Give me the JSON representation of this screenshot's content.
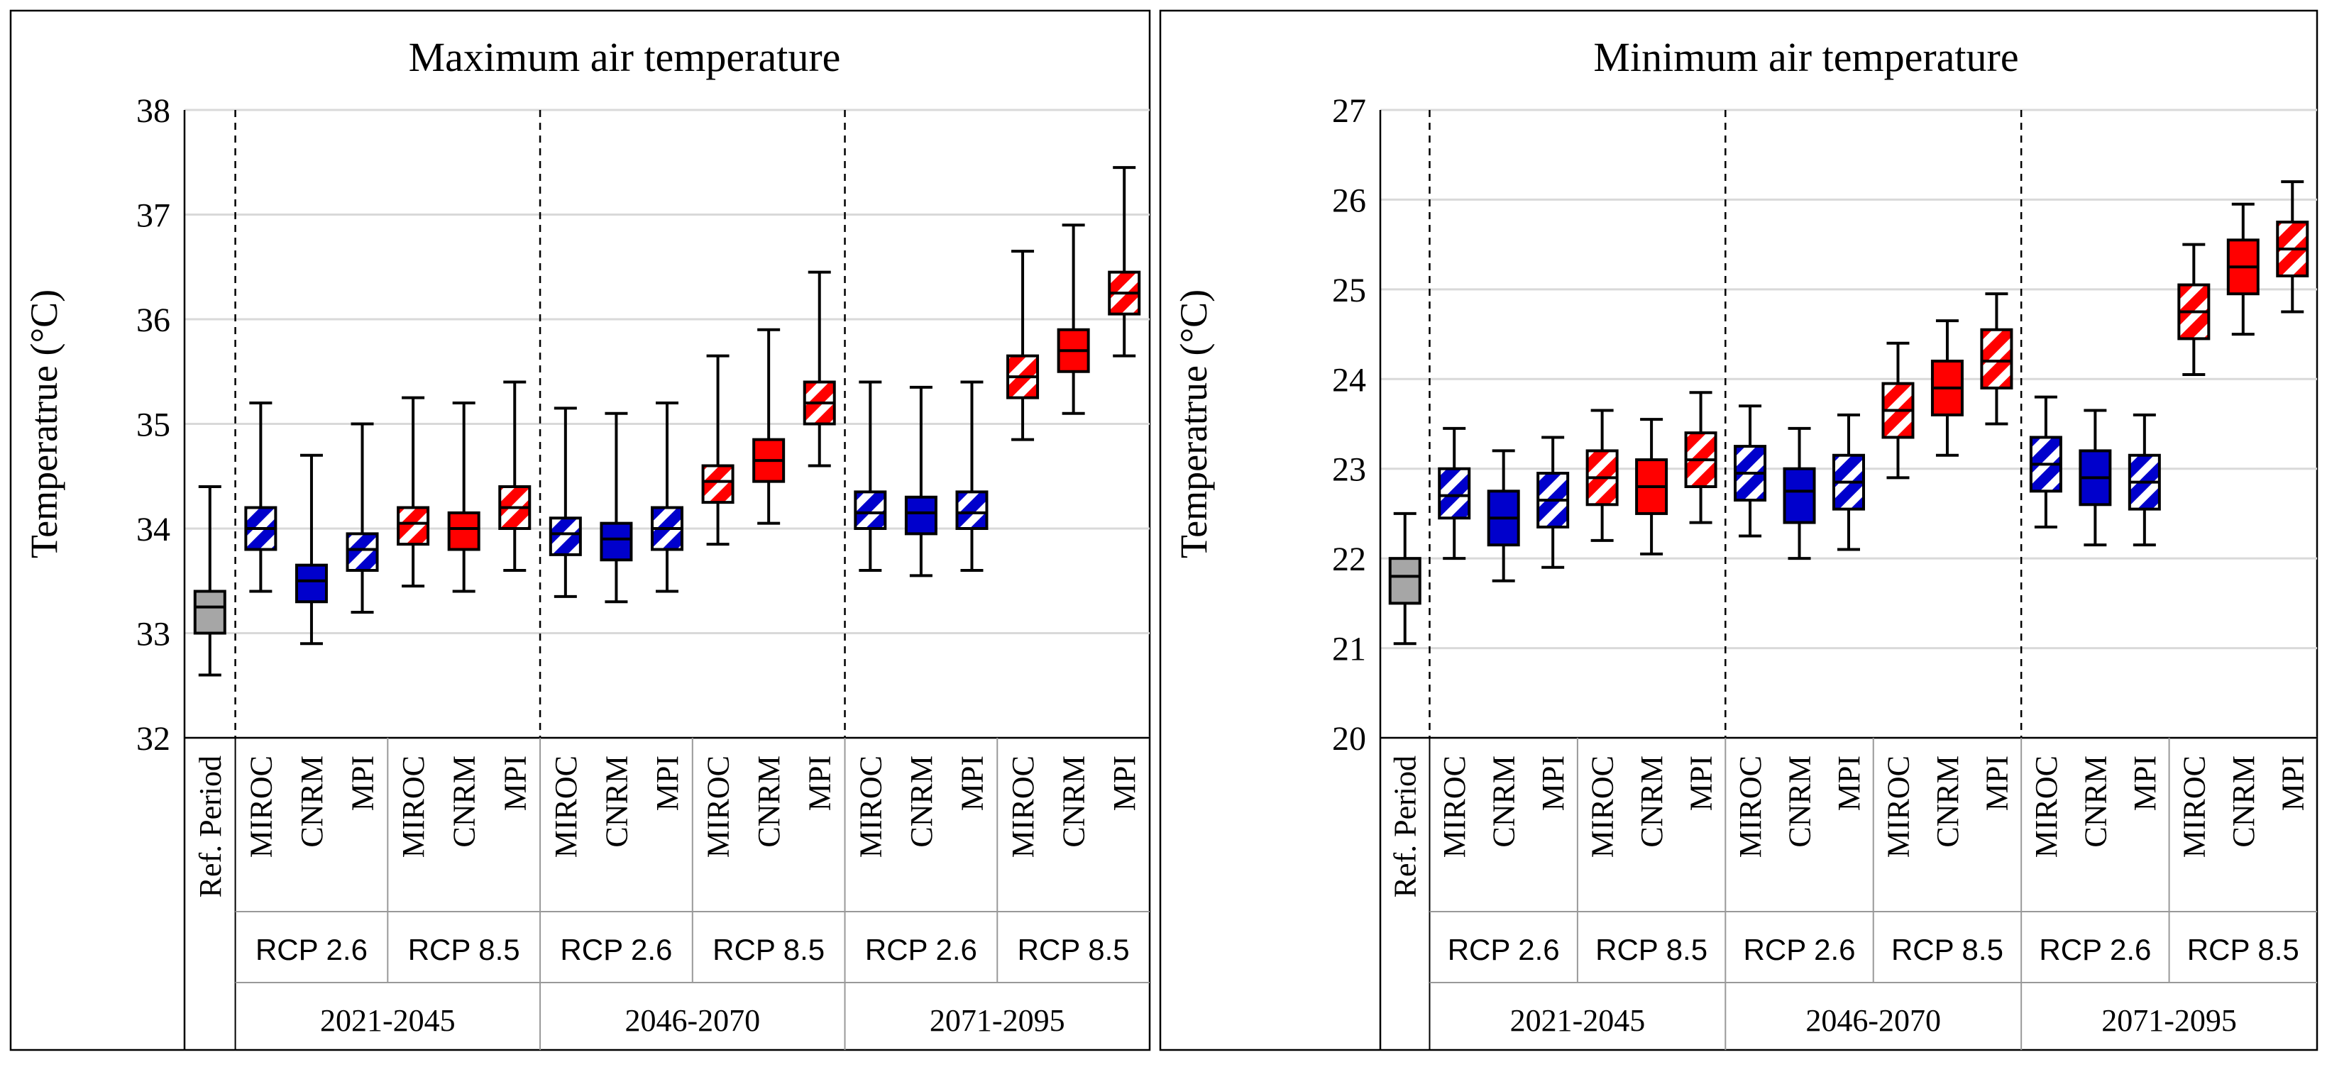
{
  "colors": {
    "ref": "#a6a6a6",
    "rcp26": "#0000cc",
    "rcp85": "#ff0000",
    "grid": "#d9d9d9",
    "frame": "#000000"
  },
  "x_axis": {
    "ref_label": "Ref. Period",
    "models": [
      "MIROC",
      "CNRM",
      "MPI"
    ],
    "scenarios": [
      "RCP 2.6",
      "RCP 8.5"
    ],
    "periods": [
      "2021-2045",
      "2046-2070",
      "2071-2095"
    ]
  },
  "chart_data": [
    {
      "type": "boxplot",
      "title": "Maximum air temperature",
      "ylabel": "Temperatrue (°C)",
      "ylim": [
        32,
        38
      ],
      "yticks": [
        "32",
        "33",
        "34",
        "35",
        "36",
        "37",
        "38"
      ],
      "grid": true,
      "boxes": [
        {
          "group": "Ref. Period",
          "scenario": "",
          "model": "",
          "color": "ref",
          "pattern": "solid",
          "min": 32.6,
          "q1": 33.0,
          "median": 33.25,
          "q3": 33.4,
          "max": 34.4
        },
        {
          "group": "2021-2045",
          "scenario": "RCP 2.6",
          "model": "MIROC",
          "color": "rcp26",
          "pattern": "hatched",
          "min": 33.4,
          "q1": 33.8,
          "median": 34.0,
          "q3": 34.2,
          "max": 35.2
        },
        {
          "group": "2021-2045",
          "scenario": "RCP 2.6",
          "model": "CNRM",
          "color": "rcp26",
          "pattern": "solid",
          "min": 32.9,
          "q1": 33.3,
          "median": 33.5,
          "q3": 33.65,
          "max": 34.7
        },
        {
          "group": "2021-2045",
          "scenario": "RCP 2.6",
          "model": "MPI",
          "color": "rcp26",
          "pattern": "hatched",
          "min": 33.2,
          "q1": 33.6,
          "median": 33.8,
          "q3": 33.95,
          "max": 35.0
        },
        {
          "group": "2021-2045",
          "scenario": "RCP 8.5",
          "model": "MIROC",
          "color": "rcp85",
          "pattern": "hatched",
          "min": 33.45,
          "q1": 33.85,
          "median": 34.05,
          "q3": 34.2,
          "max": 35.25
        },
        {
          "group": "2021-2045",
          "scenario": "RCP 8.5",
          "model": "CNRM",
          "color": "rcp85",
          "pattern": "solid",
          "min": 33.4,
          "q1": 33.8,
          "median": 34.0,
          "q3": 34.15,
          "max": 35.2
        },
        {
          "group": "2021-2045",
          "scenario": "RCP 8.5",
          "model": "MPI",
          "color": "rcp85",
          "pattern": "hatched",
          "min": 33.6,
          "q1": 34.0,
          "median": 34.2,
          "q3": 34.4,
          "max": 35.4
        },
        {
          "group": "2046-2070",
          "scenario": "RCP 2.6",
          "model": "MIROC",
          "color": "rcp26",
          "pattern": "hatched",
          "min": 33.35,
          "q1": 33.75,
          "median": 33.95,
          "q3": 34.1,
          "max": 35.15
        },
        {
          "group": "2046-2070",
          "scenario": "RCP 2.6",
          "model": "CNRM",
          "color": "rcp26",
          "pattern": "solid",
          "min": 33.3,
          "q1": 33.7,
          "median": 33.9,
          "q3": 34.05,
          "max": 35.1
        },
        {
          "group": "2046-2070",
          "scenario": "RCP 2.6",
          "model": "MPI",
          "color": "rcp26",
          "pattern": "hatched",
          "min": 33.4,
          "q1": 33.8,
          "median": 34.0,
          "q3": 34.2,
          "max": 35.2
        },
        {
          "group": "2046-2070",
          "scenario": "RCP 8.5",
          "model": "MIROC",
          "color": "rcp85",
          "pattern": "hatched",
          "min": 33.85,
          "q1": 34.25,
          "median": 34.45,
          "q3": 34.6,
          "max": 35.65
        },
        {
          "group": "2046-2070",
          "scenario": "RCP 8.5",
          "model": "CNRM",
          "color": "rcp85",
          "pattern": "solid",
          "min": 34.05,
          "q1": 34.45,
          "median": 34.65,
          "q3": 34.85,
          "max": 35.9
        },
        {
          "group": "2046-2070",
          "scenario": "RCP 8.5",
          "model": "MPI",
          "color": "rcp85",
          "pattern": "hatched",
          "min": 34.6,
          "q1": 35.0,
          "median": 35.2,
          "q3": 35.4,
          "max": 36.45
        },
        {
          "group": "2071-2095",
          "scenario": "RCP 2.6",
          "model": "MIROC",
          "color": "rcp26",
          "pattern": "hatched",
          "min": 33.6,
          "q1": 34.0,
          "median": 34.15,
          "q3": 34.35,
          "max": 35.4
        },
        {
          "group": "2071-2095",
          "scenario": "RCP 2.6",
          "model": "CNRM",
          "color": "rcp26",
          "pattern": "solid",
          "min": 33.55,
          "q1": 33.95,
          "median": 34.15,
          "q3": 34.3,
          "max": 35.35
        },
        {
          "group": "2071-2095",
          "scenario": "RCP 2.6",
          "model": "MPI",
          "color": "rcp26",
          "pattern": "hatched",
          "min": 33.6,
          "q1": 34.0,
          "median": 34.15,
          "q3": 34.35,
          "max": 35.4
        },
        {
          "group": "2071-2095",
          "scenario": "RCP 8.5",
          "model": "MIROC",
          "color": "rcp85",
          "pattern": "hatched",
          "min": 34.85,
          "q1": 35.25,
          "median": 35.45,
          "q3": 35.65,
          "max": 36.65
        },
        {
          "group": "2071-2095",
          "scenario": "RCP 8.5",
          "model": "CNRM",
          "color": "rcp85",
          "pattern": "solid",
          "min": 35.1,
          "q1": 35.5,
          "median": 35.7,
          "q3": 35.9,
          "max": 36.9
        },
        {
          "group": "2071-2095",
          "scenario": "RCP 8.5",
          "model": "MPI",
          "color": "rcp85",
          "pattern": "hatched",
          "min": 35.65,
          "q1": 36.05,
          "median": 36.25,
          "q3": 36.45,
          "max": 37.45
        }
      ]
    },
    {
      "type": "boxplot",
      "title": "Minimum air temperature",
      "ylabel": "Temperatrue (°C)",
      "ylim": [
        20,
        27
      ],
      "yticks": [
        "20",
        "21",
        "22",
        "23",
        "24",
        "25",
        "26",
        "27"
      ],
      "grid": true,
      "boxes": [
        {
          "group": "Ref. Period",
          "scenario": "",
          "model": "",
          "color": "ref",
          "pattern": "solid",
          "min": 21.05,
          "q1": 21.5,
          "median": 21.8,
          "q3": 22.0,
          "max": 22.5
        },
        {
          "group": "2021-2045",
          "scenario": "RCP 2.6",
          "model": "MIROC",
          "color": "rcp26",
          "pattern": "hatched",
          "min": 22.0,
          "q1": 22.45,
          "median": 22.7,
          "q3": 23.0,
          "max": 23.45
        },
        {
          "group": "2021-2045",
          "scenario": "RCP 2.6",
          "model": "CNRM",
          "color": "rcp26",
          "pattern": "solid",
          "min": 21.75,
          "q1": 22.15,
          "median": 22.45,
          "q3": 22.75,
          "max": 23.2
        },
        {
          "group": "2021-2045",
          "scenario": "RCP 2.6",
          "model": "MPI",
          "color": "rcp26",
          "pattern": "hatched",
          "min": 21.9,
          "q1": 22.35,
          "median": 22.65,
          "q3": 22.95,
          "max": 23.35
        },
        {
          "group": "2021-2045",
          "scenario": "RCP 8.5",
          "model": "MIROC",
          "color": "rcp85",
          "pattern": "hatched",
          "min": 22.2,
          "q1": 22.6,
          "median": 22.9,
          "q3": 23.2,
          "max": 23.65
        },
        {
          "group": "2021-2045",
          "scenario": "RCP 8.5",
          "model": "CNRM",
          "color": "rcp85",
          "pattern": "solid",
          "min": 22.05,
          "q1": 22.5,
          "median": 22.8,
          "q3": 23.1,
          "max": 23.55
        },
        {
          "group": "2021-2045",
          "scenario": "RCP 8.5",
          "model": "MPI",
          "color": "rcp85",
          "pattern": "hatched",
          "min": 22.4,
          "q1": 22.8,
          "median": 23.1,
          "q3": 23.4,
          "max": 23.85
        },
        {
          "group": "2046-2070",
          "scenario": "RCP 2.6",
          "model": "MIROC",
          "color": "rcp26",
          "pattern": "hatched",
          "min": 22.25,
          "q1": 22.65,
          "median": 22.95,
          "q3": 23.25,
          "max": 23.7
        },
        {
          "group": "2046-2070",
          "scenario": "RCP 2.6",
          "model": "CNRM",
          "color": "rcp26",
          "pattern": "solid",
          "min": 22.0,
          "q1": 22.4,
          "median": 22.75,
          "q3": 23.0,
          "max": 23.45
        },
        {
          "group": "2046-2070",
          "scenario": "RCP 2.6",
          "model": "MPI",
          "color": "rcp26",
          "pattern": "hatched",
          "min": 22.1,
          "q1": 22.55,
          "median": 22.85,
          "q3": 23.15,
          "max": 23.6
        },
        {
          "group": "2046-2070",
          "scenario": "RCP 8.5",
          "model": "MIROC",
          "color": "rcp85",
          "pattern": "hatched",
          "min": 22.9,
          "q1": 23.35,
          "median": 23.65,
          "q3": 23.95,
          "max": 24.4
        },
        {
          "group": "2046-2070",
          "scenario": "RCP 8.5",
          "model": "CNRM",
          "color": "rcp85",
          "pattern": "solid",
          "min": 23.15,
          "q1": 23.6,
          "median": 23.9,
          "q3": 24.2,
          "max": 24.65
        },
        {
          "group": "2046-2070",
          "scenario": "RCP 8.5",
          "model": "MPI",
          "color": "rcp85",
          "pattern": "hatched",
          "min": 23.5,
          "q1": 23.9,
          "median": 24.2,
          "q3": 24.55,
          "max": 24.95
        },
        {
          "group": "2071-2095",
          "scenario": "RCP 2.6",
          "model": "MIROC",
          "color": "rcp26",
          "pattern": "hatched",
          "min": 22.35,
          "q1": 22.75,
          "median": 23.05,
          "q3": 23.35,
          "max": 23.8
        },
        {
          "group": "2071-2095",
          "scenario": "RCP 2.6",
          "model": "CNRM",
          "color": "rcp26",
          "pattern": "solid",
          "min": 22.15,
          "q1": 22.6,
          "median": 22.9,
          "q3": 23.2,
          "max": 23.65
        },
        {
          "group": "2071-2095",
          "scenario": "RCP 2.6",
          "model": "MPI",
          "color": "rcp26",
          "pattern": "hatched",
          "min": 22.15,
          "q1": 22.55,
          "median": 22.85,
          "q3": 23.15,
          "max": 23.6
        },
        {
          "group": "2071-2095",
          "scenario": "RCP 8.5",
          "model": "MIROC",
          "color": "rcp85",
          "pattern": "hatched",
          "min": 24.05,
          "q1": 24.45,
          "median": 24.75,
          "q3": 25.05,
          "max": 25.5
        },
        {
          "group": "2071-2095",
          "scenario": "RCP 8.5",
          "model": "CNRM",
          "color": "rcp85",
          "pattern": "solid",
          "min": 24.5,
          "q1": 24.95,
          "median": 25.25,
          "q3": 25.55,
          "max": 25.95
        },
        {
          "group": "2071-2095",
          "scenario": "RCP 8.5",
          "model": "MPI",
          "color": "rcp85",
          "pattern": "hatched",
          "min": 24.75,
          "q1": 25.15,
          "median": 25.45,
          "q3": 25.75,
          "max": 26.2
        }
      ]
    }
  ]
}
